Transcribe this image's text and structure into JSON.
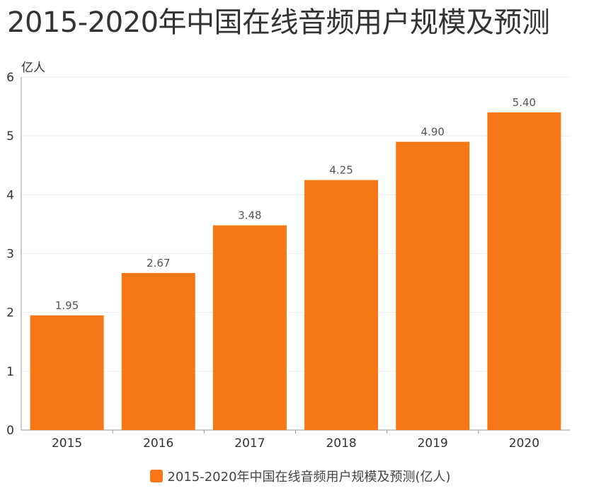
{
  "page_title": "2015-2020年中国在线音频用户规模及预测",
  "colors": {
    "bar": "#F77717",
    "grid": "#EEEEEE",
    "axis": "#999999",
    "tick_text": "#333333",
    "label_text": "#555555"
  },
  "chart_data": {
    "type": "bar",
    "title": "2015-2020年中国在线音频用户规模及预测",
    "ylabel": "亿人",
    "xlabel": "",
    "categories": [
      "2015",
      "2016",
      "2017",
      "2018",
      "2019",
      "2020"
    ],
    "series": [
      {
        "name": "2015-2020年中国在线音频用户规模及预测(亿人)",
        "values": [
          1.95,
          2.67,
          3.48,
          4.25,
          4.9,
          5.4
        ],
        "data_labels": [
          "1.95",
          "2.67",
          "3.48",
          "4.25",
          "4.90",
          "5.40"
        ]
      }
    ],
    "ylim": [
      0,
      6
    ],
    "yticks": [
      "0",
      "1",
      "2",
      "3",
      "4",
      "5",
      "6"
    ],
    "grid": true,
    "legend_position": "bottom-center"
  }
}
